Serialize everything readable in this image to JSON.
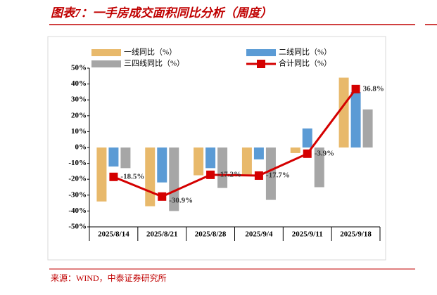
{
  "title": "图表7：一手房成交面积同比分析（周度）",
  "source": "来源：WIND，中泰证券研究所",
  "chart_data": {
    "type": "bar",
    "categories": [
      "2025/8/14",
      "2025/8/21",
      "2025/8/28",
      "2025/9/4",
      "2025/9/11",
      "2025/9/18"
    ],
    "series": [
      {
        "name": "一线同比（%）",
        "color": "#e8b96b",
        "values": [
          -34,
          -37,
          -17.5,
          -17,
          -3.5,
          44
        ]
      },
      {
        "name": "二线同比（%）",
        "color": "#5b9bd5",
        "values": [
          -12,
          -22,
          -13,
          -7.5,
          12,
          35
        ]
      },
      {
        "name": "三四线同比（%）",
        "color": "#a6a6a6",
        "values": [
          -13,
          -40,
          -25.5,
          -33,
          -25,
          24
        ]
      },
      {
        "name": "合计同比（%）",
        "color": "#d40000",
        "type": "line",
        "values": [
          -18.5,
          -30.9,
          -17.2,
          -17.7,
          -3.9,
          36.8
        ],
        "value_labels": [
          "-18.5%",
          "-30.9%",
          "-17.2%",
          "-17.7%",
          "-3.9%",
          "36.8%"
        ]
      }
    ],
    "ylim": [
      -50,
      50
    ],
    "yticks": [
      {
        "value": 50,
        "label": "50%"
      },
      {
        "value": 40,
        "label": "40%"
      },
      {
        "value": 30,
        "label": "30%"
      },
      {
        "value": 20,
        "label": "20%"
      },
      {
        "value": 10,
        "label": "10%"
      },
      {
        "value": 0,
        "label": "0%"
      },
      {
        "value": -10,
        "label": "-10%"
      },
      {
        "value": -20,
        "label": "-20%"
      },
      {
        "value": -30,
        "label": "-30%"
      },
      {
        "value": -40,
        "label": "-40%"
      },
      {
        "value": -50,
        "label": "-50%"
      }
    ]
  }
}
